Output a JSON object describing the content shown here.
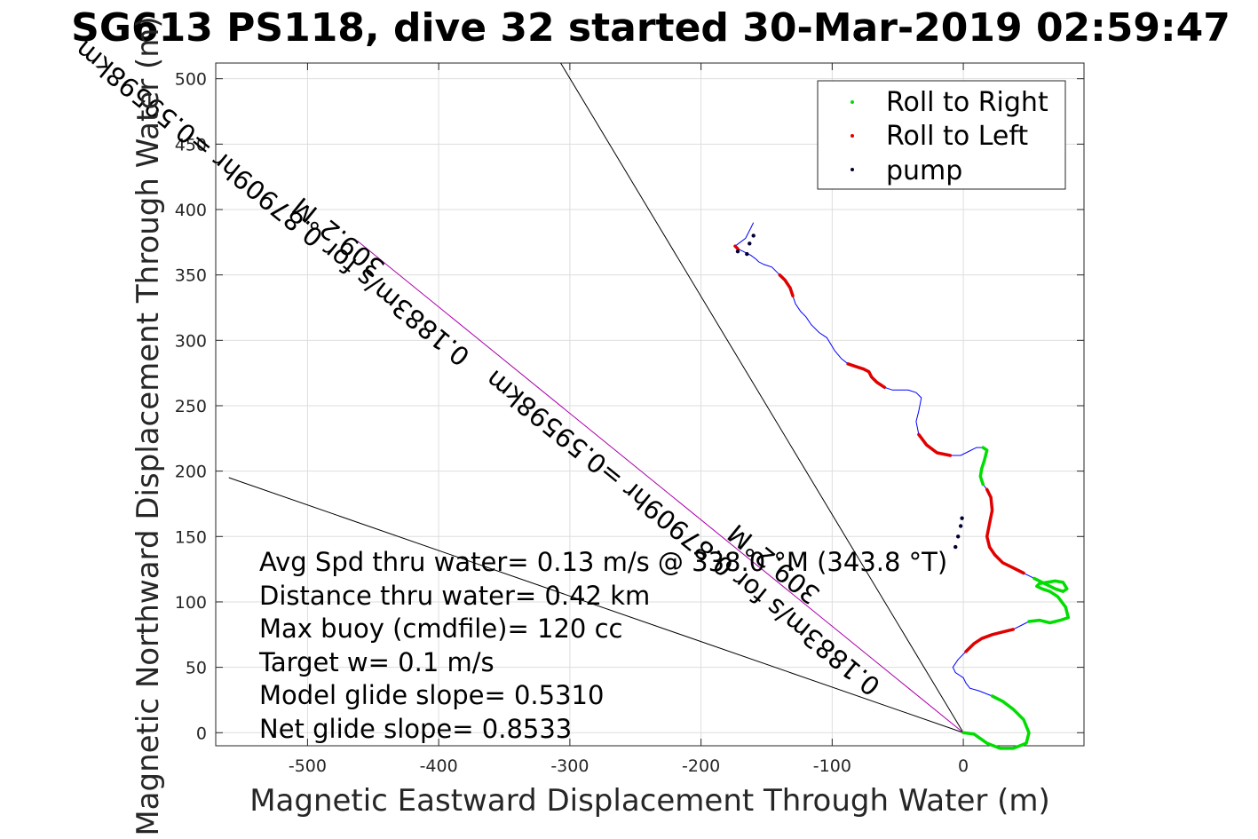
{
  "chart_data": {
    "type": "line",
    "title": "SG613 PS118, dive 32 started 30-Mar-2019 02:59:47",
    "xlabel": "Magnetic Eastward Displacement Through Water (m)",
    "ylabel": "Magnetic Northward Displacement Through Water (m)",
    "xlim": [
      -570,
      92
    ],
    "ylim": [
      -10,
      512
    ],
    "xticks": [
      -500,
      -400,
      -300,
      -200,
      -100,
      0
    ],
    "yticks": [
      0,
      50,
      100,
      150,
      200,
      250,
      300,
      350,
      400,
      450,
      500
    ],
    "grid": true,
    "legend": {
      "placement": "top-right",
      "entries": [
        {
          "label": "Roll to Right",
          "color": "#00dd00"
        },
        {
          "label": "Roll to Left",
          "color": "#e00000"
        },
        {
          "label": "pump",
          "color": "#000033"
        }
      ]
    },
    "series": [
      {
        "name": "track",
        "color": "#0000ff",
        "x": [
          0,
          8,
          18,
          28,
          38,
          48,
          50,
          46,
          38,
          30,
          22,
          12,
          5,
          2,
          0,
          -6,
          -8,
          -4,
          2,
          8,
          14,
          22,
          30,
          38,
          44,
          50,
          58,
          66,
          74,
          80,
          78,
          72,
          66,
          60,
          56,
          58,
          64,
          70,
          76,
          79,
          76,
          70,
          62,
          54,
          46,
          38,
          30,
          24,
          20,
          18,
          20,
          22,
          21,
          18,
          15,
          13,
          14,
          16,
          18,
          15,
          10,
          4,
          -2,
          -10,
          -20,
          -28,
          -34,
          -36,
          -34,
          -32,
          -36,
          -42,
          -48,
          -54,
          -60,
          -66,
          -70,
          -72,
          -76,
          -82,
          -88,
          -93,
          -98,
          -104,
          -110,
          -116,
          -120,
          -124,
          -128,
          -130,
          -132,
          -136,
          -140,
          -146,
          -152,
          -156,
          -158,
          -162,
          -168,
          -172,
          -174,
          -170,
          -166,
          -164,
          -162,
          -160
        ],
        "y": [
          0,
          -1,
          -8,
          -12,
          -12,
          -8,
          0,
          10,
          18,
          24,
          28,
          32,
          34,
          38,
          42,
          46,
          50,
          56,
          62,
          68,
          72,
          75,
          77,
          79,
          82,
          85,
          86,
          84,
          86,
          88,
          96,
          104,
          108,
          110,
          112,
          114,
          115,
          116,
          115,
          110,
          108,
          110,
          114,
          118,
          122,
          126,
          130,
          136,
          142,
          150,
          160,
          170,
          180,
          186,
          190,
          196,
          202,
          208,
          216,
          218,
          218,
          215,
          212,
          212,
          214,
          220,
          228,
          238,
          246,
          256,
          260,
          262,
          262,
          262,
          264,
          268,
          272,
          276,
          278,
          280,
          282,
          286,
          292,
          302,
          306,
          312,
          318,
          322,
          328,
          334,
          340,
          346,
          350,
          356,
          358,
          360,
          362,
          365,
          368,
          370,
          372,
          375,
          378,
          382,
          386,
          390
        ]
      }
    ],
    "lines": [
      {
        "name": "heading line 1",
        "x": [
          0,
          -307
        ],
        "y": [
          0,
          512
        ]
      },
      {
        "name": "heading line 2",
        "x": [
          0,
          -560
        ],
        "y": [
          0,
          195
        ]
      },
      {
        "name": "net displacement",
        "x": [
          0,
          -462
        ],
        "y": [
          0,
          376
        ],
        "color": "#aa00aa"
      }
    ],
    "roll_right_segments": [
      [
        0,
        10
      ],
      [
        25,
        43
      ],
      [
        54,
        59
      ]
    ],
    "roll_left_segments": [
      [
        18,
        23
      ],
      [
        44,
        53
      ],
      [
        63,
        66
      ],
      [
        74,
        80
      ],
      [
        89,
        92
      ],
      [
        99,
        100
      ],
      [
        106,
        107
      ]
    ],
    "pump_points": [
      [
        -6,
        142
      ],
      [
        -4,
        150
      ],
      [
        -2,
        158
      ],
      [
        -1,
        164
      ],
      [
        -160,
        380
      ],
      [
        -163,
        374
      ],
      [
        -172,
        368
      ],
      [
        -165,
        366
      ]
    ],
    "labels_along_line": [
      {
        "text": "309.2°M",
        "x": -440,
        "y": 358
      },
      {
        "text": "0.1883m/s for 0.87909hr =0.59598km",
        "x": -375,
        "y": 290
      },
      {
        "text": "309.2°M",
        "x": -108,
        "y": 108
      },
      {
        "text": "0.1883m/s for 0.87909hr =0.59598km",
        "x": -62,
        "y": 38
      }
    ],
    "annotations": [
      "Avg Spd thru water=  0.13 m/s @ 338.0 °M (343.8 °T)",
      "Distance thru water=  0.42 km",
      "Max buoy (cmdfile)= 120 cc",
      "Target w= 0.1 m/s",
      "Model glide slope= 0.5310",
      "Net glide slope= 0.8533"
    ]
  }
}
